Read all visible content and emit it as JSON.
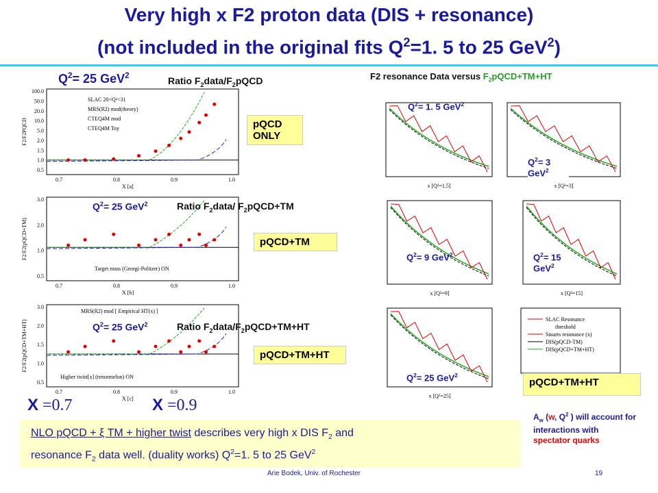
{
  "title": {
    "line1": "Very high x F2 proton data (DIS + resonance)",
    "line2": [
      {
        "t": "(not included in the original fits Q"
      },
      {
        "t": "2",
        "sup": true
      },
      {
        "t": "=1. 5 to 25 GeV"
      },
      {
        "t": "2",
        "sup": true
      },
      {
        "t": ")"
      }
    ]
  },
  "left": {
    "panels": [
      {
        "q2": [
          {
            "t": "Q"
          },
          {
            "t": "2",
            "sup": true
          },
          {
            "t": "= 25 GeV"
          },
          {
            "t": "2",
            "sup": true
          }
        ],
        "ratio": [
          {
            "t": "Ratio F"
          },
          {
            "t": "2",
            "sub": true
          },
          {
            "t": "data/F"
          },
          {
            "t": "2",
            "sub": true
          },
          {
            "t": "pQCD"
          }
        ],
        "tag": [
          "pQCD",
          "ONLY"
        ],
        "ylabel": "F2/F2PQCD",
        "xlabel": "X [a]",
        "legend": [
          "SLAC 20<Q²<31",
          "MRS(R2) mod(theory)",
          "CTEQ4M mod",
          "CTEQ4M Toy"
        ],
        "yticks": [
          "100.0",
          "50.0",
          "20.0",
          "10.0",
          "5.0",
          "2.0",
          "1.5",
          "1.0",
          "0.5"
        ],
        "xticks": [
          "0.7",
          "0.8",
          "0.9",
          "1.0"
        ]
      },
      {
        "q2": [
          {
            "t": "Q"
          },
          {
            "t": "2",
            "sup": true
          },
          {
            "t": "= 25 GeV"
          },
          {
            "t": "2",
            "sup": true
          }
        ],
        "ratio": [
          {
            "t": "Ratio F"
          },
          {
            "t": "2",
            "sub": true
          },
          {
            "t": "data/ F"
          },
          {
            "t": "2",
            "sub": true
          },
          {
            "t": "pQCD+TM"
          }
        ],
        "tag": [
          "pQCD+TM"
        ],
        "ylabel": "F2/F2(pQCD+TM)",
        "xlabel": "X  [b]",
        "legend": [
          "Target mass (Georgi-Politzer) ON"
        ],
        "yticks": [
          "3.0",
          "2.0",
          "1.0",
          "0.5"
        ],
        "xticks": [
          "0.7",
          "0.8",
          "0.9",
          "1.0"
        ]
      },
      {
        "q2": [
          {
            "t": "Q"
          },
          {
            "t": "2",
            "sup": true
          },
          {
            "t": "= 25 GeV"
          },
          {
            "t": "2",
            "sup": true
          }
        ],
        "ratio": [
          {
            "t": "Ratio F"
          },
          {
            "t": "2",
            "sub": true
          },
          {
            "t": "data/F"
          },
          {
            "t": "2",
            "sub": true
          },
          {
            "t": "pQCD+TM+HT"
          }
        ],
        "tag": [
          "pQCD+TM+HT"
        ],
        "ylabel": "F2/F2(pQCD+TM+HT)",
        "xlabel": "X  [c]",
        "legend": [
          "MRS(R2) mod [ Empirical HT(x) ]",
          "Higher twist[x] (renormelon) ON"
        ],
        "yticks": [
          "3.0",
          "2.0",
          "1.5",
          "1.0",
          "0.5"
        ],
        "xticks": [
          "0.7",
          "0.8",
          "0.9",
          "1.0"
        ]
      }
    ],
    "xmarks": [
      {
        "x": "X",
        "v": " =0.7"
      },
      {
        "x": "X",
        "v": " =0.9"
      }
    ]
  },
  "right": {
    "header": [
      {
        "t": "F2 resonance Data versus "
      },
      {
        "t": "F",
        "green": true
      },
      {
        "t": "2",
        "sub": true,
        "green": true
      },
      {
        "t": "pQCD+TM+HT",
        "green": true
      }
    ],
    "panels": [
      {
        "label": [
          {
            "t": "Q"
          },
          {
            "t": "2",
            "sup": true
          },
          {
            "t": "= 1. 5 GeV"
          },
          {
            "t": "2",
            "sup": true
          }
        ],
        "xlabel": "x [Q²=1.5]"
      },
      {
        "label": [
          {
            "t": "Q"
          },
          {
            "t": "2",
            "sup": true
          },
          {
            "t": "= 3 GeV"
          },
          {
            "t": "2",
            "sup": true
          }
        ],
        "xlabel": "x [Q²=3]"
      },
      {
        "label": [
          {
            "t": "Q"
          },
          {
            "t": "2",
            "sup": true
          },
          {
            "t": "= 9 GeV"
          },
          {
            "t": "2",
            "sup": true
          }
        ],
        "xlabel": "x [Q²=9]"
      },
      {
        "label": [
          {
            "t": "Q"
          },
          {
            "t": "2",
            "sup": true
          },
          {
            "t": "= 15 GeV"
          },
          {
            "t": "2",
            "sup": true
          }
        ],
        "xlabel": "x [Q²=15]"
      },
      {
        "label": [
          {
            "t": "Q"
          },
          {
            "t": "2",
            "sup": true
          },
          {
            "t": "= 25 GeV"
          },
          {
            "t": "2",
            "sup": true
          }
        ],
        "xlabel": "x [Q²=25]"
      }
    ],
    "legend": [
      "SLAC Resonance",
      "threshold",
      "Stuarts resonance (x)",
      "DIS(pQCD-TM)",
      "DIS(pQCD+TM+HT)"
    ],
    "tag": "pQCD+TM+HT"
  },
  "note": [
    {
      "t": "NLO pQCD + ξ TM + higher twist",
      "u": true
    },
    {
      "t": " describes very high x DIS F"
    },
    {
      "t": "2",
      "sub": true
    },
    {
      "t": " and"
    },
    {
      "br": true,
      "t": ""
    },
    {
      "t": "resonance F"
    },
    {
      "t": "2",
      "sub": true
    },
    {
      "t": " data well. (duality works)  Q"
    },
    {
      "t": "2",
      "sup": true
    },
    {
      "t": "=1. 5 to 25 GeV"
    },
    {
      "t": "2",
      "sup": true
    }
  ],
  "side": [
    {
      "t": "A"
    },
    {
      "t": "w",
      "sub": true
    },
    {
      "t": " ("
    },
    {
      "t": "w",
      "red": true
    },
    {
      "t": ", Q"
    },
    {
      "t": "2",
      "sup": true
    },
    {
      "t": " ) will account for interactions with "
    },
    {
      "t": "spectator quarks",
      "red": true
    }
  ],
  "footer": {
    "author": "Arie Bodek,  Univ. of Rochester",
    "page": "19"
  }
}
